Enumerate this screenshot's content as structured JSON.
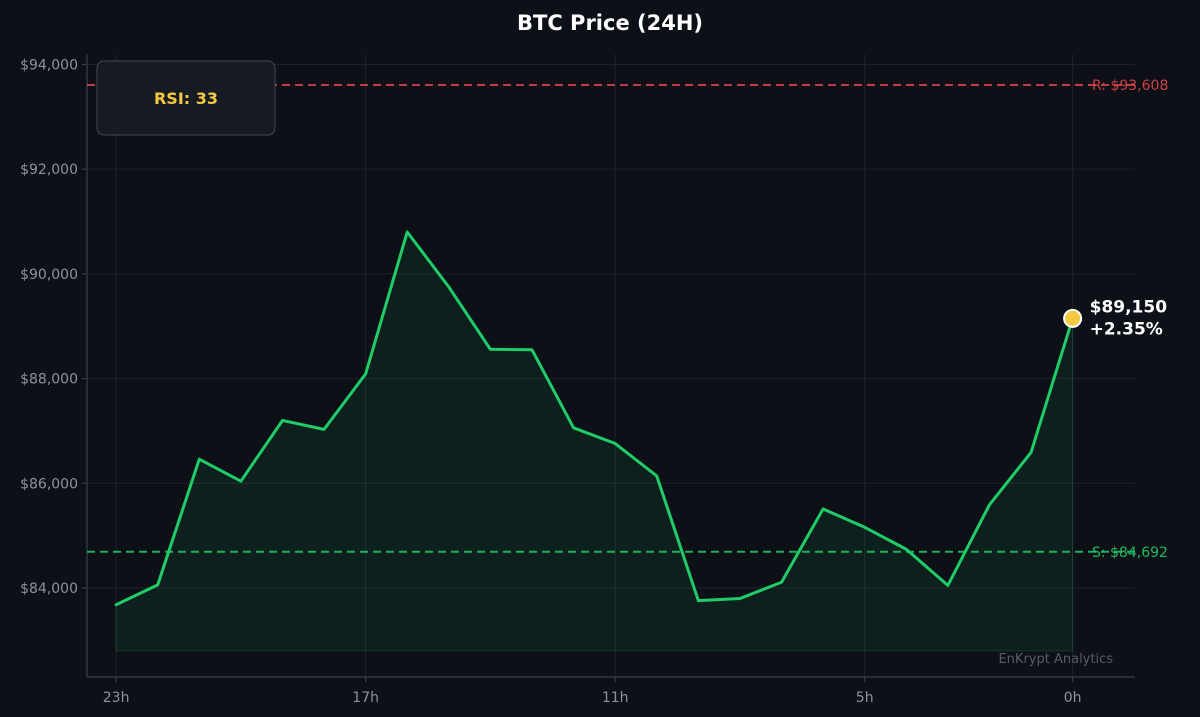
{
  "chart_data": {
    "type": "line",
    "title": "BTC Price (24H)",
    "x_tick_labels": [
      "23h",
      "17h",
      "11h",
      "5h",
      "0h"
    ],
    "y_tick_labels": [
      "$84,000",
      "$86,000",
      "$88,000",
      "$90,000",
      "$92,000",
      "$94,000"
    ],
    "y_ticks": [
      84000,
      86000,
      88000,
      90000,
      92000,
      94000
    ],
    "ylim": [
      82300,
      94200
    ],
    "xlim": [
      -0.7,
      24.5
    ],
    "grid": true,
    "series": [
      {
        "color": "#1fcc67",
        "fill": true,
        "fill_baseline": 82800,
        "x": [
          0,
          1,
          2,
          3,
          4,
          5,
          6,
          7,
          8,
          9,
          10,
          11,
          12,
          13,
          14,
          15,
          16,
          17,
          18,
          19,
          20,
          21,
          22,
          23
        ],
        "values": [
          83680,
          84060,
          86460,
          86040,
          87200,
          87030,
          88090,
          90800,
          89750,
          88560,
          88550,
          87060,
          86760,
          86140,
          83760,
          83800,
          84110,
          85510,
          85160,
          84740,
          84050,
          85590,
          86590,
          89150
        ]
      }
    ],
    "resistance": {
      "label": "R: $93,608",
      "value": 93608,
      "color": "#e0464b"
    },
    "support": {
      "label": "S: $84,692",
      "value": 84692,
      "color": "#1fcc67"
    },
    "current": {
      "price_label": "$89,150",
      "change_label": "+2.35%",
      "value": 89150,
      "marker_color": "#f5c842"
    },
    "rsi": {
      "label": "RSI: 33"
    },
    "watermark": "EnKrypt Analytics"
  }
}
